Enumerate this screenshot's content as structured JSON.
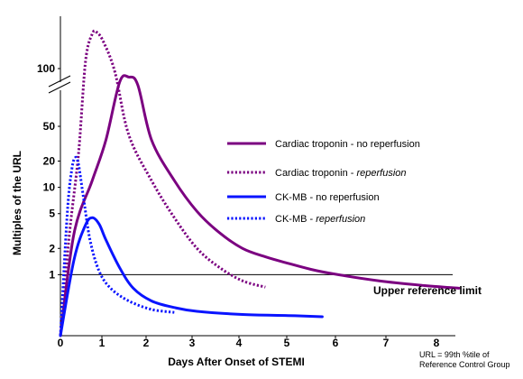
{
  "chart_data": {
    "type": "line",
    "xlabel": "Days After Onset of STEMI",
    "ylabel": "Multiples of the URL",
    "x_ticks": [
      "0",
      "1",
      "2",
      "3",
      "4",
      "5",
      "6",
      "7",
      "8"
    ],
    "y_ticks": [
      "1",
      "2",
      "5",
      "10",
      "20",
      "50",
      "100"
    ],
    "y_scale": "log, broken axis between 50 and 100",
    "xlim": [
      0,
      8
    ],
    "reference_line": {
      "label": "Upper reference limit",
      "value": 1
    },
    "note": [
      "URL = 99th %tile of",
      "Reference Control Group"
    ],
    "legend_position": "right",
    "series": [
      {
        "name_main": "Cardiac troponin - ",
        "name_suffix": "no reperfusion",
        "italic_suffix": false,
        "style": "solid",
        "color": "#7b0080",
        "points": [
          [
            0.0,
            0.2
          ],
          [
            0.3,
            3.0
          ],
          [
            0.7,
            12.0
          ],
          [
            1.0,
            35.0
          ],
          [
            1.3,
            70.0
          ],
          [
            1.5,
            80.0
          ],
          [
            1.7,
            65.0
          ],
          [
            2.0,
            35.0
          ],
          [
            2.5,
            12.0
          ],
          [
            3.0,
            5.3
          ],
          [
            3.5,
            3.0
          ],
          [
            4.0,
            2.0
          ],
          [
            4.5,
            1.6
          ],
          [
            5.0,
            1.35
          ],
          [
            5.5,
            1.15
          ],
          [
            6.0,
            1.02
          ],
          [
            7.0,
            0.85
          ],
          [
            8.0,
            0.75
          ],
          [
            8.75,
            0.7
          ]
        ]
      },
      {
        "name_main": "Cardiac troponin - ",
        "name_suffix": "reperfusion",
        "italic_suffix": true,
        "style": "dotted",
        "color": "#7b0080",
        "points": [
          [
            0.0,
            0.2
          ],
          [
            0.2,
            3.0
          ],
          [
            0.4,
            25.0
          ],
          [
            0.55,
            120.0
          ],
          [
            0.7,
            250.0
          ],
          [
            0.8,
            260.0
          ],
          [
            0.95,
            200.0
          ],
          [
            1.2,
            90.0
          ],
          [
            1.5,
            40.0
          ],
          [
            2.0,
            12.0
          ],
          [
            2.5,
            4.5
          ],
          [
            3.0,
            2.0
          ],
          [
            3.5,
            1.2
          ],
          [
            4.0,
            0.85
          ],
          [
            4.5,
            0.72
          ]
        ]
      },
      {
        "name_main": "CK-MB - ",
        "name_suffix": "no reperfusion",
        "italic_suffix": false,
        "style": "solid",
        "color": "#0a14ff",
        "points": [
          [
            0.0,
            0.2
          ],
          [
            0.3,
            1.5
          ],
          [
            0.55,
            3.7
          ],
          [
            0.7,
            4.5
          ],
          [
            0.85,
            3.8
          ],
          [
            1.0,
            2.5
          ],
          [
            1.3,
            1.2
          ],
          [
            1.6,
            0.7
          ],
          [
            2.0,
            0.5
          ],
          [
            2.5,
            0.42
          ],
          [
            3.0,
            0.38
          ],
          [
            4.0,
            0.35
          ],
          [
            5.0,
            0.34
          ],
          [
            5.75,
            0.33
          ]
        ]
      },
      {
        "name_main": "CK-MB - ",
        "name_suffix": "reperfusion",
        "italic_suffix": true,
        "style": "dotted",
        "color": "#0a14ff",
        "points": [
          [
            0.0,
            0.2
          ],
          [
            0.15,
            5.0
          ],
          [
            0.25,
            16.0
          ],
          [
            0.33,
            22.0
          ],
          [
            0.4,
            18.0
          ],
          [
            0.5,
            8.0
          ],
          [
            0.65,
            2.5
          ],
          [
            0.85,
            1.1
          ],
          [
            1.1,
            0.7
          ],
          [
            1.5,
            0.5
          ],
          [
            2.0,
            0.4
          ],
          [
            2.5,
            0.37
          ]
        ]
      }
    ]
  }
}
